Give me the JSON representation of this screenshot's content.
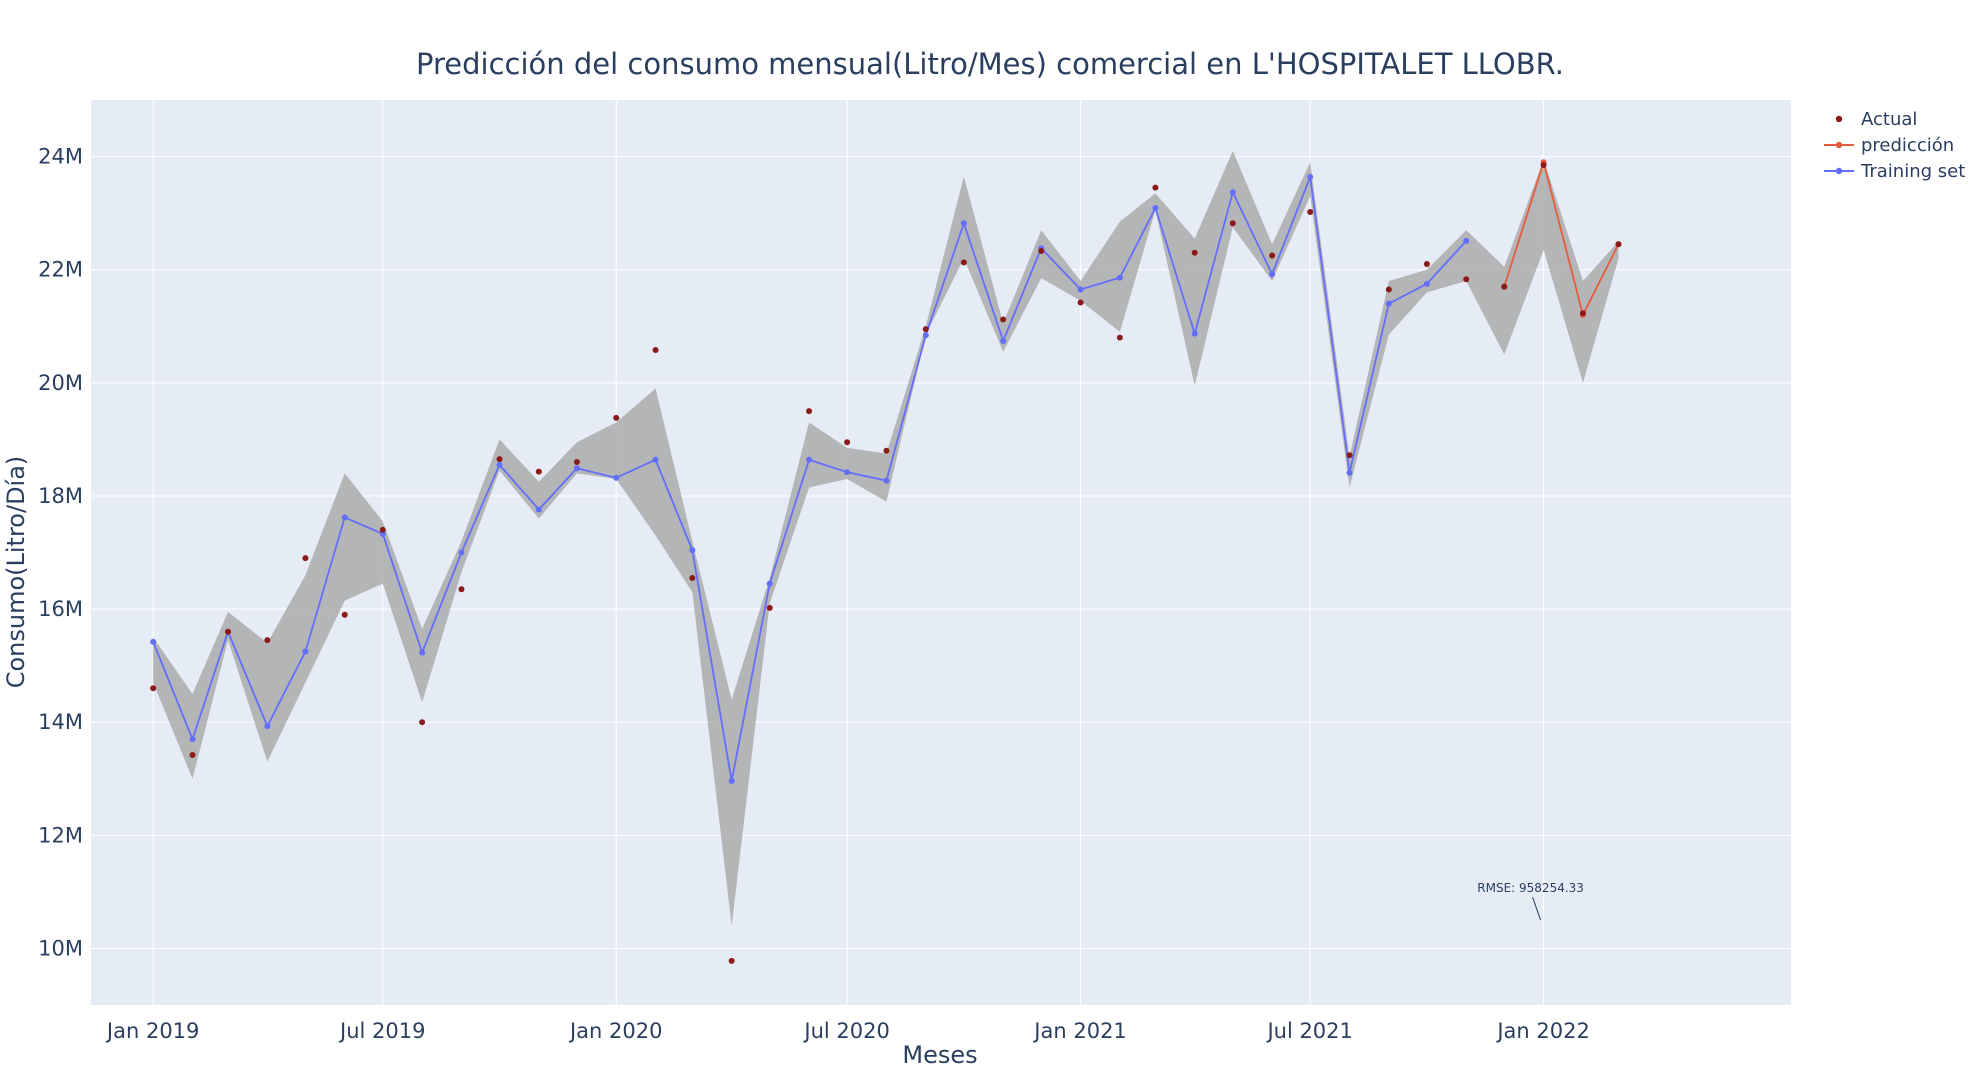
{
  "chart_data": {
    "type": "line",
    "title": "Predicción del consumo mensual(Litro/Mes) comercial en L'HOSPITALET LLOBR.",
    "xlabel": "Meses",
    "ylabel": "Consumo(Litro/Día)",
    "ylim": [
      9000000,
      25000000
    ],
    "xlim": [
      "2018-11-13",
      "2022-07-15"
    ],
    "x_ticks": [
      "2019-01-01",
      "2019-07-01",
      "2020-01-01",
      "2020-07-01",
      "2021-01-01",
      "2021-07-01",
      "2022-01-01"
    ],
    "x_tick_labels": [
      "Jan 2019",
      "Jul 2019",
      "Jan 2020",
      "Jul 2020",
      "Jan 2021",
      "Jul 2021",
      "Jan 2022"
    ],
    "y_ticks": [
      10000000,
      12000000,
      14000000,
      16000000,
      18000000,
      20000000,
      22000000,
      24000000
    ],
    "y_tick_labels": [
      "10M",
      "12M",
      "14M",
      "16M",
      "18M",
      "20M",
      "22M",
      "24M"
    ],
    "grid": true,
    "legend_position": "top-right",
    "colors": {
      "background": "#e5ecf6",
      "grid": "#ffffff",
      "actual": "#8b1a1a",
      "prediction": "#e45c3c",
      "training": "#636efa",
      "band": "#a8a8a8"
    },
    "series": [
      {
        "name": "Actual",
        "mode": "markers",
        "x": [
          "2019-01-01",
          "2019-02-01",
          "2019-03-01",
          "2019-04-01",
          "2019-05-01",
          "2019-06-01",
          "2019-07-01",
          "2019-08-01",
          "2019-09-01",
          "2019-10-01",
          "2019-11-01",
          "2019-12-01",
          "2020-01-01",
          "2020-02-01",
          "2020-03-01",
          "2020-04-01",
          "2020-05-01",
          "2020-06-01",
          "2020-07-01",
          "2020-08-01",
          "2020-09-01",
          "2020-10-01",
          "2020-11-01",
          "2020-12-01",
          "2021-01-01",
          "2021-02-01",
          "2021-03-01",
          "2021-04-01",
          "2021-05-01",
          "2021-06-01",
          "2021-07-01",
          "2021-08-01",
          "2021-09-01",
          "2021-10-01",
          "2021-11-01",
          "2021-12-01",
          "2022-01-01",
          "2022-02-01",
          "2022-03-01"
        ],
        "values": [
          14600000,
          13420000,
          15600000,
          15450000,
          16900000,
          15900000,
          17400000,
          14000000,
          16350000,
          18650000,
          18430000,
          18600000,
          19380000,
          20580000,
          16550000,
          9780000,
          16020000,
          19500000,
          18950000,
          18800000,
          20950000,
          22130000,
          21120000,
          22330000,
          21420000,
          20800000,
          23450000,
          22300000,
          22820000,
          22250000,
          23020000,
          18720000,
          21650000,
          22100000,
          21830000,
          21700000,
          23850000,
          21230000,
          22450000
        ]
      },
      {
        "name": "predicción",
        "mode": "lines+markers",
        "x": [
          "2021-12-01",
          "2022-01-01",
          "2022-02-01",
          "2022-03-01"
        ],
        "values": [
          21700000,
          23900000,
          21200000,
          22450000
        ]
      },
      {
        "name": "Training set",
        "mode": "lines+markers",
        "x": [
          "2019-01-01",
          "2019-02-01",
          "2019-03-01",
          "2019-04-01",
          "2019-05-01",
          "2019-06-01",
          "2019-07-01",
          "2019-08-01",
          "2019-09-01",
          "2019-10-01",
          "2019-11-01",
          "2019-12-01",
          "2020-01-01",
          "2020-02-01",
          "2020-03-01",
          "2020-04-01",
          "2020-05-01",
          "2020-06-01",
          "2020-07-01",
          "2020-08-01",
          "2020-09-01",
          "2020-10-01",
          "2020-11-01",
          "2020-12-01",
          "2021-01-01",
          "2021-02-01",
          "2021-03-01",
          "2021-04-01",
          "2021-05-01",
          "2021-06-01",
          "2021-07-01",
          "2021-08-01",
          "2021-09-01",
          "2021-10-01",
          "2021-11-01"
        ],
        "values": [
          15420000,
          13700000,
          15600000,
          13930000,
          15250000,
          17620000,
          17330000,
          15230000,
          17000000,
          18550000,
          17760000,
          18490000,
          18320000,
          18640000,
          17040000,
          12960000,
          16450000,
          18640000,
          18420000,
          18270000,
          20840000,
          22820000,
          20740000,
          22380000,
          21650000,
          21860000,
          23090000,
          20870000,
          23370000,
          21920000,
          23640000,
          18410000,
          21400000,
          21750000,
          22510000
        ]
      }
    ],
    "confidence_band": {
      "x": [
        "2019-01-01",
        "2019-02-01",
        "2019-03-01",
        "2019-04-01",
        "2019-05-01",
        "2019-06-01",
        "2019-07-01",
        "2019-08-01",
        "2019-09-01",
        "2019-10-01",
        "2019-11-01",
        "2019-12-01",
        "2020-01-01",
        "2020-02-01",
        "2020-03-01",
        "2020-04-01",
        "2020-05-01",
        "2020-06-01",
        "2020-07-01",
        "2020-08-01",
        "2020-09-01",
        "2020-10-01",
        "2020-11-01",
        "2020-12-01",
        "2021-01-01",
        "2021-02-01",
        "2021-03-01",
        "2021-04-01",
        "2021-05-01",
        "2021-06-01",
        "2021-07-01",
        "2021-08-01",
        "2021-09-01",
        "2021-10-01",
        "2021-11-01",
        "2021-12-01",
        "2022-01-01",
        "2022-02-01",
        "2022-03-01"
      ],
      "upper": [
        15500000,
        14500000,
        15950000,
        15400000,
        16600000,
        18400000,
        17550000,
        15650000,
        17200000,
        19000000,
        18250000,
        18950000,
        19300000,
        19900000,
        17200000,
        14400000,
        16550000,
        19300000,
        18850000,
        18750000,
        21000000,
        23650000,
        21050000,
        22700000,
        21800000,
        22850000,
        23350000,
        22550000,
        24100000,
        22450000,
        23900000,
        18700000,
        21800000,
        22000000,
        22700000,
        22050000,
        23950000,
        21800000,
        22500000
      ],
      "lower": [
        14700000,
        13000000,
        15450000,
        13300000,
        14700000,
        16150000,
        16450000,
        14350000,
        16650000,
        18450000,
        17600000,
        18400000,
        18300000,
        17300000,
        16300000,
        10400000,
        16100000,
        18150000,
        18300000,
        17900000,
        20850000,
        22200000,
        20550000,
        21850000,
        21450000,
        20900000,
        23050000,
        19950000,
        22750000,
        21800000,
        23300000,
        18150000,
        20850000,
        21600000,
        21800000,
        20500000,
        22350000,
        20000000,
        22200000
      ]
    },
    "annotation": {
      "text": "RMSE: 958254.33",
      "x": "2022-01-01",
      "y": 10500000
    }
  }
}
